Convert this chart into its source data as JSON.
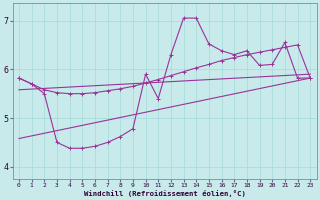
{
  "background_color": "#c8eaea",
  "line_color": "#993399",
  "grid_color": "#aadddd",
  "xlabel": "Windchill (Refroidissement éolien,°C)",
  "xlim": [
    -0.5,
    23.5
  ],
  "ylim": [
    3.75,
    7.35
  ],
  "xticks": [
    0,
    1,
    2,
    3,
    4,
    5,
    6,
    7,
    8,
    9,
    10,
    11,
    12,
    13,
    14,
    15,
    16,
    17,
    18,
    19,
    20,
    21,
    22,
    23
  ],
  "yticks": [
    4,
    5,
    6,
    7
  ],
  "line1_x": [
    0,
    1,
    2,
    3,
    4,
    5,
    6,
    7,
    8,
    9,
    10,
    11,
    12,
    13,
    14,
    15,
    16,
    17,
    18,
    19,
    20,
    21,
    22,
    23
  ],
  "line1_y": [
    5.82,
    5.7,
    5.58,
    5.52,
    5.5,
    5.5,
    5.52,
    5.56,
    5.6,
    5.65,
    5.72,
    5.79,
    5.87,
    5.95,
    6.03,
    6.1,
    6.18,
    6.24,
    6.3,
    6.35,
    6.4,
    6.45,
    6.5,
    5.82
  ],
  "line2_x": [
    0,
    1,
    2,
    3,
    4,
    5,
    6,
    7,
    8,
    9,
    10,
    11,
    12,
    13,
    14,
    15,
    16,
    17,
    18,
    19,
    20,
    21,
    22,
    23
  ],
  "line2_y": [
    5.82,
    5.7,
    5.5,
    4.5,
    4.38,
    4.38,
    4.42,
    4.5,
    4.62,
    4.78,
    5.9,
    5.4,
    6.3,
    7.05,
    7.05,
    6.52,
    6.38,
    6.3,
    6.38,
    6.08,
    6.1,
    6.55,
    5.82,
    5.82
  ],
  "line3_x": [
    0,
    23
  ],
  "line3_y": [
    5.58,
    5.9
  ],
  "line4_x": [
    0,
    23
  ],
  "line4_y": [
    4.58,
    5.82
  ]
}
